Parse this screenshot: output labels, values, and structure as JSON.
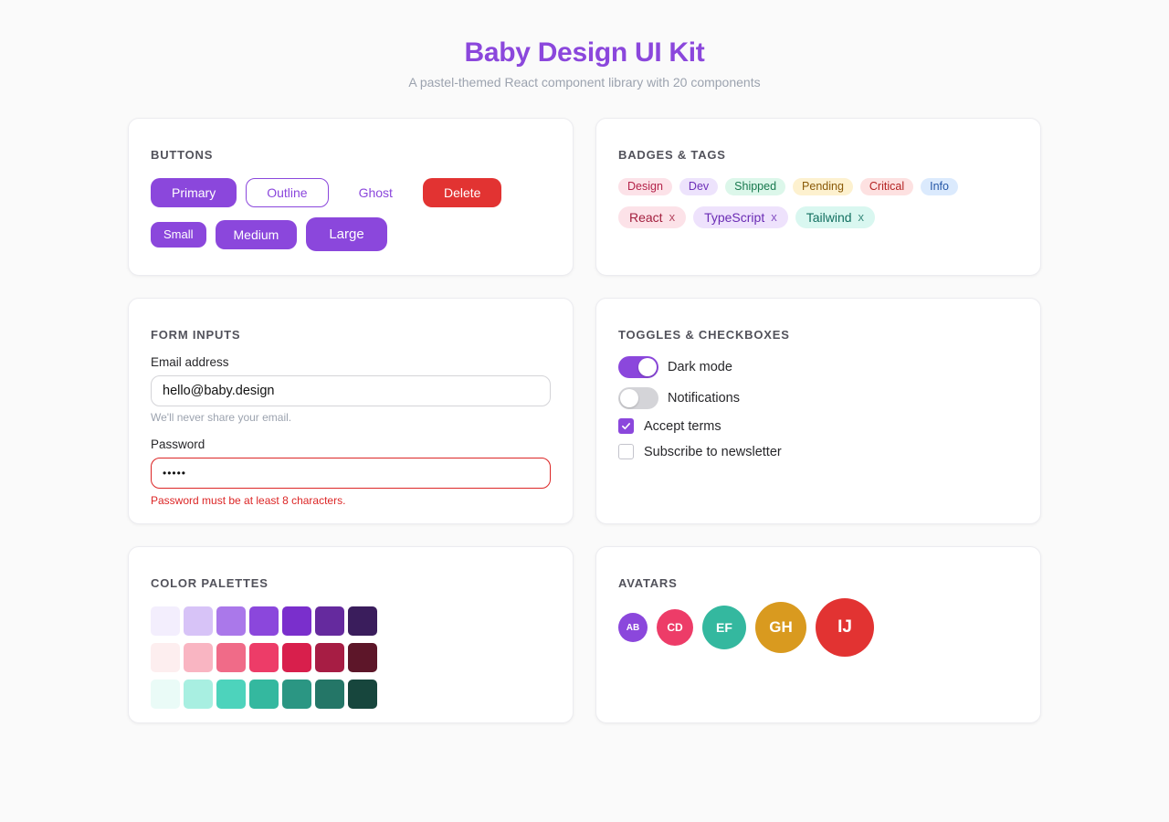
{
  "header": {
    "title": "Baby Design UI Kit",
    "subtitle": "A pastel-themed React component library with 20 components"
  },
  "colors": {
    "primary": "#8b47dc",
    "danger": "#e23332",
    "background": "#fafafa"
  },
  "buttons": {
    "title": "BUTTONS",
    "variants": [
      "Primary",
      "Outline",
      "Ghost",
      "Delete"
    ],
    "sizes": [
      "Small",
      "Medium",
      "Large"
    ]
  },
  "badges": {
    "title": "BADGES & TAGS",
    "badges": [
      {
        "label": "Design",
        "bg": "#fce2e8",
        "fg": "#b4234a"
      },
      {
        "label": "Dev",
        "bg": "#ede3fc",
        "fg": "#6d2fb8"
      },
      {
        "label": "Shipped",
        "bg": "#dcf7ea",
        "fg": "#18794e"
      },
      {
        "label": "Pending",
        "bg": "#fdf1cf",
        "fg": "#8a5a08"
      },
      {
        "label": "Critical",
        "bg": "#fde1e1",
        "fg": "#b42323"
      },
      {
        "label": "Info",
        "bg": "#dbeafd",
        "fg": "#2456a6"
      }
    ],
    "tags": [
      {
        "label": "React",
        "remove": "x",
        "bg": "#fce2e8",
        "fg": "#a3203f"
      },
      {
        "label": "TypeScript",
        "remove": "x",
        "bg": "#eee2fc",
        "fg": "#6a2bb4"
      },
      {
        "label": "Tailwind",
        "remove": "x",
        "bg": "#d9f7f0",
        "fg": "#137060"
      }
    ]
  },
  "form": {
    "title": "FORM INPUTS",
    "email_label": "Email address",
    "email_value": "hello@baby.design",
    "email_help": "We'll never share your email.",
    "password_label": "Password",
    "password_value": "•••••",
    "password_error": "Password must be at least 8 characters."
  },
  "toggles": {
    "title": "TOGGLES & CHECKBOXES",
    "items": [
      {
        "label": "Dark mode",
        "on": true
      },
      {
        "label": "Notifications",
        "on": false
      }
    ],
    "checkboxes": [
      {
        "label": "Accept terms",
        "checked": true
      },
      {
        "label": "Subscribe to newsletter",
        "checked": false
      }
    ]
  },
  "palettes": {
    "title": "COLOR PALETTES",
    "rows": [
      [
        "#f3eefd",
        "#d7c3f7",
        "#aa78ea",
        "#8b47dc",
        "#7a2fcc",
        "#652a9e",
        "#3a1d5c"
      ],
      [
        "#fdeeef",
        "#f9b5c2",
        "#f06b88",
        "#ed3c68",
        "#d81f4c",
        "#a71d44",
        "#5d1629"
      ],
      [
        "#eafbf7",
        "#a8efe1",
        "#4dd3bc",
        "#34b89f",
        "#2b9683",
        "#247667",
        "#17463d"
      ]
    ]
  },
  "avatars": {
    "title": "AVATARS",
    "items": [
      {
        "initials": "AB",
        "color": "#8b47dc",
        "size": 32
      },
      {
        "initials": "CD",
        "color": "#ed3c68",
        "size": 40
      },
      {
        "initials": "EF",
        "color": "#34b89f",
        "size": 48
      },
      {
        "initials": "GH",
        "color": "#d99a1f",
        "size": 56
      },
      {
        "initials": "IJ",
        "color": "#e23332",
        "size": 64
      }
    ]
  }
}
